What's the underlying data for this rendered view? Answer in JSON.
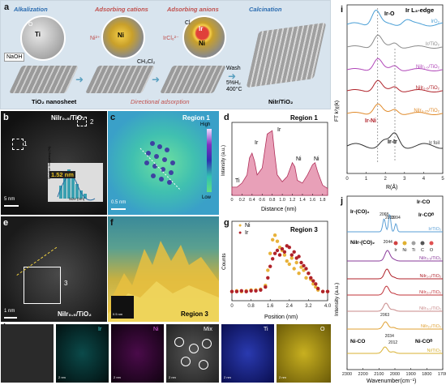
{
  "panel_a": {
    "label": "a",
    "steps": [
      "Alkalization",
      "Adsorbing cations",
      "Adsorbing anions",
      "Calcination"
    ],
    "reagents": {
      "naoh": "NaOH",
      "ni": "Ni²⁺",
      "ircl": "IrCl₆²⁻",
      "solvent": "CH₃Cl₂",
      "wash": "Wash",
      "h2": "5%H₂",
      "temp": "400°C"
    },
    "notes": {
      "substrate": "TiO₂ nanosheet",
      "adsorption": "Directional adsorption",
      "product": "NiIr/TiO₂"
    },
    "atoms": {
      "ti": "Ti",
      "o": "O",
      "ni": "Ni",
      "ir": "Ir",
      "cl": "Cl"
    }
  },
  "panel_b": {
    "label": "b",
    "title": "NiIr₀.₅/TiO₂",
    "size": "1.52 nm",
    "scale": "5 nm",
    "markers": [
      "1",
      "2"
    ],
    "ylabel": "Relative frequency (%)",
    "xlabel": "Size (nm)"
  },
  "panel_c": {
    "label": "c",
    "title": "Region 1",
    "scale": "0.5 nm",
    "high": "High",
    "low": "Low"
  },
  "panel_d": {
    "label": "d",
    "title": "Region 1",
    "xlabel": "Distance (nm)",
    "ylabel": "Intensity (a.u.)",
    "peaks": [
      "Ti",
      "Ir",
      "Ir",
      "Ni",
      "Ni"
    ],
    "xticks": [
      "0",
      "0.2",
      "0.4",
      "0.6",
      "0.8",
      "1.0",
      "1.2",
      "1.4",
      "1.6",
      "1.8"
    ]
  },
  "panel_e": {
    "label": "e",
    "title": "NiIr₀.₅/TiO₂",
    "scale": "1 nm",
    "marker": "3"
  },
  "panel_f": {
    "label": "f",
    "title": "Region 3",
    "scale": "0.5 nm"
  },
  "panel_g": {
    "label": "g",
    "title": "Region 3",
    "xlabel": "Position (nm)",
    "ylabel": "Counts",
    "legend": [
      "Ni",
      "Ir"
    ],
    "xticks": [
      "0",
      "0.8",
      "1.6",
      "2.4",
      "3.2",
      "4.0"
    ]
  },
  "panel_h": {
    "label": "h",
    "maps": [
      "Ir",
      "Ni",
      "Mix",
      "Ti",
      "O"
    ],
    "scale": "2 nm"
  },
  "panel_i": {
    "label": "i",
    "title": "Ir L₃-edge",
    "xlabel": "R(Å)",
    "ylabel": "FT k²χ(k)",
    "xticks": [
      "0",
      "1",
      "2",
      "3",
      "4",
      "5"
    ],
    "peaks": {
      "ir_o": "Ir-O",
      "ir_ni": "Ir-Ni",
      "ir_ir": "Ir-Ir"
    },
    "series": [
      "IrO₂",
      "Ir/TiO₂",
      "NiIr₁.₀/TiO₂",
      "NiIr₀.₅/TiO₂",
      "NiIr₀.₂₅/TiO₂",
      "Ir foil"
    ]
  },
  "panel_j": {
    "label": "j",
    "xlabel": "Wavenumber(cm⁻¹)",
    "ylabel": "Intensity (a.u.)",
    "xticks": [
      "2300",
      "2200",
      "2100",
      "2000",
      "1900",
      "1800",
      "1700"
    ],
    "annotations": {
      "ir_co2": "Ir-(CO)₂",
      "ir_co": "Ir-CO",
      "ir_cob": "Ir-COᴮ",
      "nir_co2": "NiIr-(CO)₂",
      "ni_co": "Ni-CO",
      "ni_cob": "Ni-COᴮ"
    },
    "legend": [
      "Ir",
      "Ni",
      "Ti",
      "C",
      "O"
    ],
    "bands": [
      "2068",
      "2033",
      "1994",
      "2044",
      "2063",
      "2034",
      "2012"
    ],
    "series": [
      "Ir/TiO₂",
      "NiIr₀.₅/TiO₂",
      "NiIr₁.₀/TiO₂",
      "NiIr₂.₀/TiO₂",
      "NiIr₄.₀/TiO₂",
      "NiIr₁₀/TiO₂",
      "Ni/TiO₂"
    ]
  },
  "chart_data": [
    {
      "type": "area",
      "panel": "d",
      "title": "Region 1",
      "xlabel": "Distance (nm)",
      "ylabel": "Intensity (a.u.)",
      "xlim": [
        0,
        1.9
      ],
      "x": [
        0,
        0.1,
        0.2,
        0.3,
        0.35,
        0.4,
        0.45,
        0.5,
        0.6,
        0.7,
        0.8,
        0.85,
        0.9,
        1.0,
        1.1,
        1.2,
        1.25,
        1.3,
        1.4,
        1.5,
        1.6,
        1.65,
        1.7,
        1.8,
        1.9
      ],
      "y": [
        0.12,
        0.12,
        0.18,
        0.3,
        0.55,
        0.62,
        0.5,
        0.3,
        0.4,
        0.9,
        0.95,
        0.6,
        0.3,
        0.2,
        0.28,
        0.48,
        0.42,
        0.22,
        0.18,
        0.3,
        0.45,
        0.48,
        0.35,
        0.15,
        0.1
      ]
    },
    {
      "type": "scatter",
      "panel": "g",
      "title": "Region 3",
      "xlabel": "Position (nm)",
      "ylabel": "Counts",
      "xlim": [
        0,
        4.0
      ],
      "series": [
        {
          "name": "Ni",
          "color": "#e8b23a",
          "x": [
            0.0,
            0.2,
            0.4,
            0.6,
            0.8,
            1.0,
            1.2,
            1.4,
            1.5,
            1.6,
            1.7,
            1.8,
            1.9,
            2.0,
            2.1,
            2.2,
            2.3,
            2.4,
            2.5,
            2.6,
            2.7,
            2.8,
            2.9,
            3.0,
            3.1,
            3.2,
            3.3,
            3.4,
            3.5,
            3.6,
            3.8,
            4.0
          ],
          "y": [
            0.12,
            0.13,
            0.12,
            0.13,
            0.14,
            0.14,
            0.15,
            0.2,
            0.4,
            0.62,
            0.8,
            0.86,
            0.78,
            0.7,
            0.66,
            0.6,
            0.52,
            0.48,
            0.56,
            0.42,
            0.5,
            0.36,
            0.44,
            0.4,
            0.3,
            0.36,
            0.28,
            0.22,
            0.18,
            0.14,
            0.12,
            0.12
          ]
        },
        {
          "name": "Ir",
          "color": "#b0222a",
          "x": [
            0.0,
            0.2,
            0.4,
            0.6,
            0.8,
            1.0,
            1.2,
            1.4,
            1.5,
            1.6,
            1.7,
            1.8,
            1.9,
            2.0,
            2.1,
            2.2,
            2.3,
            2.4,
            2.5,
            2.6,
            2.7,
            2.8,
            2.9,
            3.0,
            3.1,
            3.2,
            3.3,
            3.4,
            3.5,
            3.6,
            3.8,
            4.0
          ],
          "y": [
            0.12,
            0.12,
            0.13,
            0.12,
            0.13,
            0.13,
            0.14,
            0.18,
            0.3,
            0.45,
            0.55,
            0.62,
            0.66,
            0.6,
            0.68,
            0.64,
            0.72,
            0.7,
            0.6,
            0.64,
            0.56,
            0.58,
            0.5,
            0.46,
            0.42,
            0.36,
            0.3,
            0.26,
            0.22,
            0.16,
            0.12,
            0.12
          ]
        }
      ]
    },
    {
      "type": "line",
      "panel": "i",
      "title": "Ir L₃-edge",
      "xlabel": "R(Å)",
      "ylabel": "FT k²χ(k)",
      "xlim": [
        0,
        5
      ],
      "series": [
        {
          "name": "IrO₂",
          "color": "#4a9fd6"
        },
        {
          "name": "Ir/TiO₂",
          "color": "#8a8a8a"
        },
        {
          "name": "NiIr₁.₀/TiO₂",
          "color": "#b046b8"
        },
        {
          "name": "NiIr₀.₅/TiO₂",
          "color": "#b0222a"
        },
        {
          "name": "NiIr₀.₂₅/TiO₂",
          "color": "#e08a2a"
        },
        {
          "name": "Ir foil",
          "color": "#333333"
        }
      ]
    },
    {
      "type": "line",
      "panel": "j",
      "xlabel": "Wavenumber(cm⁻¹)",
      "ylabel": "Intensity (a.u.)",
      "xlim": [
        2300,
        1700
      ],
      "series": [
        {
          "name": "Ir/TiO₂",
          "color": "#5a9fd6"
        },
        {
          "name": "NiIr₀.₅/TiO₂",
          "color": "#8a3a9a"
        },
        {
          "name": "NiIr₁.₀/TiO₂",
          "color": "#b0222a"
        },
        {
          "name": "NiIr₂.₀/TiO₂",
          "color": "#c0333a"
        },
        {
          "name": "NiIr₄.₀/TiO₂",
          "color": "#c98a8a"
        },
        {
          "name": "NiIr₁₀/TiO₂",
          "color": "#e0a030"
        },
        {
          "name": "Ni/TiO₂",
          "color": "#d8b030"
        }
      ]
    }
  ]
}
